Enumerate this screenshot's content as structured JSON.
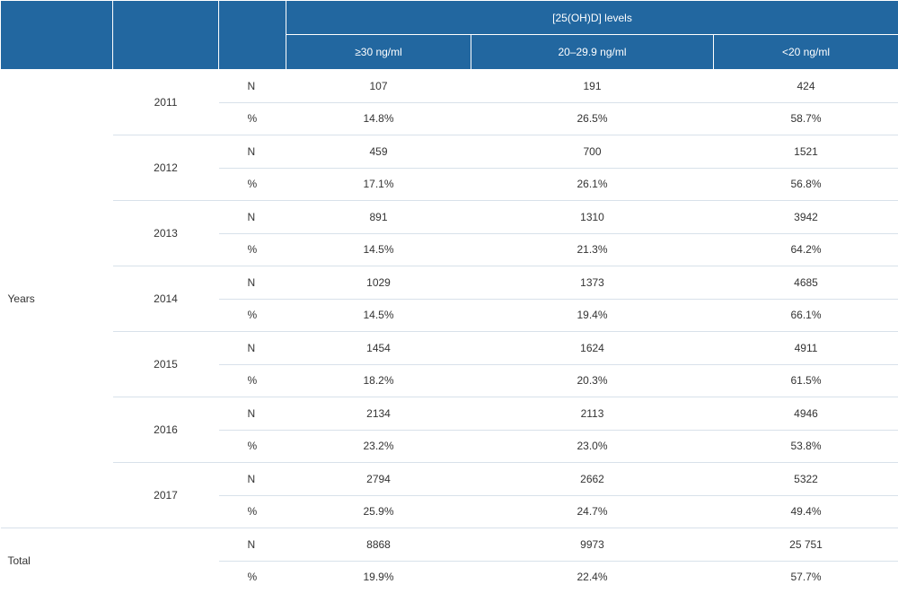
{
  "header": {
    "group_label": "[25(OH)D] levels",
    "columns": [
      "≥30 ng/ml",
      "20–29.9 ng/ml",
      "<20 ng/ml"
    ]
  },
  "section_label": "Years",
  "years": [
    {
      "year": "2011",
      "n": [
        "107",
        "191",
        "424"
      ],
      "pct": [
        "14.8%",
        "26.5%",
        "58.7%"
      ]
    },
    {
      "year": "2012",
      "n": [
        "459",
        "700",
        "1521"
      ],
      "pct": [
        "17.1%",
        "26.1%",
        "56.8%"
      ]
    },
    {
      "year": "2013",
      "n": [
        "891",
        "1310",
        "3942"
      ],
      "pct": [
        "14.5%",
        "21.3%",
        "64.2%"
      ]
    },
    {
      "year": "2014",
      "n": [
        "1029",
        "1373",
        "4685"
      ],
      "pct": [
        "14.5%",
        "19.4%",
        "66.1%"
      ]
    },
    {
      "year": "2015",
      "n": [
        "1454",
        "1624",
        "4911"
      ],
      "pct": [
        "18.2%",
        "20.3%",
        "61.5%"
      ]
    },
    {
      "year": "2016",
      "n": [
        "2134",
        "2113",
        "4946"
      ],
      "pct": [
        "23.2%",
        "23.0%",
        "53.8%"
      ]
    },
    {
      "year": "2017",
      "n": [
        "2794",
        "2662",
        "5322"
      ],
      "pct": [
        "25.9%",
        "24.7%",
        "49.4%"
      ]
    }
  ],
  "total": {
    "label": "Total",
    "n": [
      "8868",
      "9973",
      "25 751"
    ],
    "pct": [
      "19.9%",
      "22.4%",
      "57.7%"
    ]
  },
  "stat_labels": {
    "n": "N",
    "pct": "%"
  },
  "colors": {
    "header_bg": "#2267a0",
    "header_text": "#ffffff",
    "row_rule": "#d8e1ea",
    "text": "#333333"
  }
}
